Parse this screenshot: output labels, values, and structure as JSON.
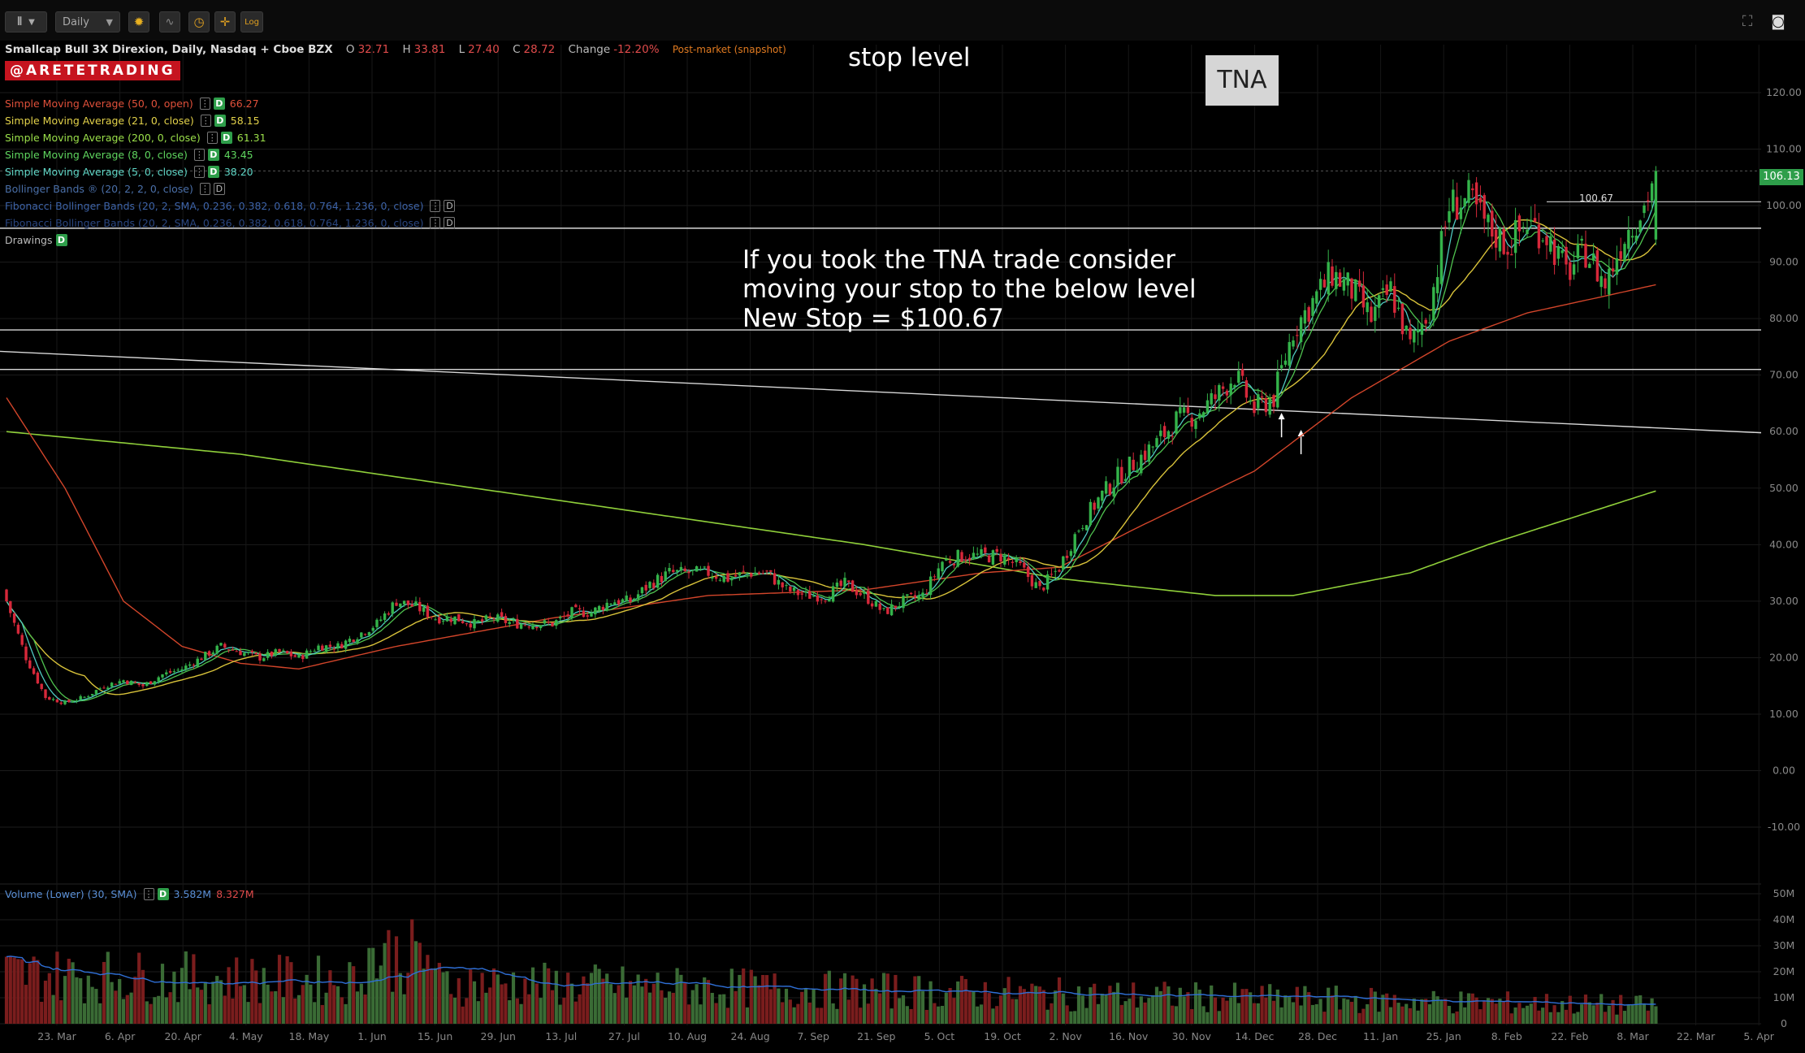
{
  "toolbar": {
    "chart_type_icon": "candlestick-icon",
    "interval": "Daily",
    "buttons": [
      "gear-icon",
      "indicator-icon",
      "clock-icon",
      "crosshair-icon"
    ],
    "log_label": "Log"
  },
  "header": {
    "symbol_name": "Smallcap Bull 3X Direxion, Daily, Nasdaq + Cboe BZX",
    "open_label": "O",
    "open": "32.71",
    "high_label": "H",
    "high": "33.81",
    "low_label": "L",
    "low": "27.40",
    "close_label": "C",
    "close": "28.72",
    "change_label": "Change",
    "change": "-12.20%",
    "session": "Post-market (snapshot)"
  },
  "brand": "@ARETETRADING",
  "indicators": [
    {
      "label": "Simple Moving Average (50, 0, open)",
      "value": "66.27",
      "color": "#e0503a"
    },
    {
      "label": "Simple Moving Average (21, 0, close)",
      "value": "58.15",
      "color": "#e3d24a"
    },
    {
      "label": "Simple Moving Average (200, 0, close)",
      "value": "61.31",
      "color": "#9be04a"
    },
    {
      "label": "Simple Moving Average (8, 0, close)",
      "value": "43.45",
      "color": "#5fd65f"
    },
    {
      "label": "Simple Moving Average (5, 0, close)",
      "value": "38.20",
      "color": "#5fd6c6"
    },
    {
      "label": "Bollinger Bands ® (20, 2, 2, 0, close)",
      "value": "",
      "color": "#4a6fa8"
    },
    {
      "label": "Fibonacci Bollinger Bands (20, 2, SMA, 0.236, 0.382, 0.618, 0.764, 1.236, 0, close)",
      "value": "",
      "color": "#3d63a8"
    },
    {
      "label": "Fibonacci Bollinger Bands (20, 2, SMA, 0.236, 0.382, 0.618, 0.764, 1.236, 0, close)",
      "value": "",
      "color": "#2a4680"
    },
    {
      "label": "Drawings",
      "value": "",
      "color": "#bbbbbb"
    }
  ],
  "annotations": {
    "stop_level": "stop level",
    "tna": "TNA",
    "note_lines": [
      "If you took the TNA trade consider",
      "moving your stop to the below level",
      "New Stop = $100.67"
    ],
    "stop_price": "100.67"
  },
  "last_price": "106.13",
  "volume_legend": {
    "label": "Volume (Lower) (30, SMA)",
    "value1": "3.582M",
    "value2": "8.327M"
  },
  "chart_data": {
    "type": "candlestick",
    "ylim": [
      -20,
      130
    ],
    "price_ticks": [
      "120.00",
      "110.00",
      "100.00",
      "90.00",
      "80.00",
      "70.00",
      "60.00",
      "50.00",
      "40.00",
      "30.00",
      "20.00",
      "10.00",
      "0.00",
      "-10.00"
    ],
    "volume_ticks": [
      "50M",
      "40M",
      "30M",
      "20M",
      "10M",
      "0"
    ],
    "x_ticks": [
      "23. Mar",
      "6. Apr",
      "20. Apr",
      "4. May",
      "18. May",
      "1. Jun",
      "15. Jun",
      "29. Jun",
      "13. Jul",
      "27. Jul",
      "10. Aug",
      "24. Aug",
      "7. Sep",
      "21. Sep",
      "5. Oct",
      "19. Oct",
      "2. Nov",
      "16. Nov",
      "30. Nov",
      "14. Dec",
      "28. Dec",
      "11. Jan",
      "25. Jan",
      "8. Feb",
      "22. Feb",
      "8. Mar",
      "22. Mar",
      "5. Apr"
    ],
    "close_anchors": [
      [
        0,
        30
      ],
      [
        5,
        20
      ],
      [
        10,
        13
      ],
      [
        15,
        12
      ],
      [
        20,
        13
      ],
      [
        25,
        15
      ],
      [
        30,
        16
      ],
      [
        35,
        15
      ],
      [
        40,
        17
      ],
      [
        45,
        18
      ],
      [
        50,
        20
      ],
      [
        55,
        22
      ],
      [
        60,
        21
      ],
      [
        65,
        20
      ],
      [
        70,
        21
      ],
      [
        75,
        20
      ],
      [
        80,
        22
      ],
      [
        85,
        22
      ],
      [
        90,
        24
      ],
      [
        95,
        26
      ],
      [
        100,
        30
      ],
      [
        105,
        29
      ],
      [
        110,
        27
      ],
      [
        115,
        27
      ],
      [
        120,
        26
      ],
      [
        125,
        27
      ],
      [
        130,
        26
      ],
      [
        135,
        26
      ],
      [
        140,
        26
      ],
      [
        145,
        28
      ],
      [
        150,
        28
      ],
      [
        155,
        30
      ],
      [
        160,
        30
      ],
      [
        165,
        33
      ],
      [
        170,
        35
      ],
      [
        175,
        35
      ],
      [
        180,
        35
      ],
      [
        185,
        34
      ],
      [
        190,
        35
      ],
      [
        195,
        35
      ],
      [
        200,
        32
      ],
      [
        205,
        31
      ],
      [
        210,
        31
      ],
      [
        215,
        33
      ],
      [
        220,
        31
      ],
      [
        225,
        28
      ],
      [
        230,
        30
      ],
      [
        235,
        31
      ],
      [
        240,
        37
      ],
      [
        245,
        38
      ],
      [
        250,
        38
      ],
      [
        255,
        38
      ],
      [
        260,
        36
      ],
      [
        265,
        32
      ],
      [
        270,
        36
      ],
      [
        275,
        43
      ],
      [
        280,
        48
      ],
      [
        285,
        52
      ],
      [
        290,
        55
      ],
      [
        295,
        58
      ],
      [
        300,
        62
      ],
      [
        305,
        63
      ],
      [
        310,
        66
      ],
      [
        315,
        70
      ],
      [
        320,
        64
      ],
      [
        325,
        66
      ],
      [
        330,
        78
      ],
      [
        335,
        83
      ],
      [
        340,
        88
      ],
      [
        345,
        85
      ],
      [
        350,
        80
      ],
      [
        355,
        85
      ],
      [
        360,
        75
      ],
      [
        365,
        82
      ],
      [
        370,
        100
      ],
      [
        375,
        101
      ],
      [
        380,
        96
      ],
      [
        385,
        93
      ],
      [
        390,
        97
      ],
      [
        395,
        95
      ],
      [
        400,
        88
      ],
      [
        405,
        92
      ],
      [
        410,
        86
      ],
      [
        415,
        95
      ],
      [
        420,
        100
      ],
      [
        423,
        106.13
      ]
    ],
    "sma200_anchors": [
      [
        0,
        60
      ],
      [
        60,
        56
      ],
      [
        140,
        48
      ],
      [
        220,
        40
      ],
      [
        270,
        34
      ],
      [
        310,
        31
      ],
      [
        330,
        31
      ],
      [
        360,
        35
      ],
      [
        380,
        40
      ],
      [
        423,
        49.5
      ]
    ],
    "sma50_anchors": [
      [
        0,
        66
      ],
      [
        15,
        50
      ],
      [
        30,
        30
      ],
      [
        45,
        22
      ],
      [
        60,
        19
      ],
      [
        75,
        18
      ],
      [
        100,
        22
      ],
      [
        140,
        27
      ],
      [
        180,
        31
      ],
      [
        220,
        32
      ],
      [
        250,
        35
      ],
      [
        270,
        36
      ],
      [
        290,
        43
      ],
      [
        320,
        53
      ],
      [
        345,
        66
      ],
      [
        370,
        76
      ],
      [
        390,
        81
      ],
      [
        410,
        84
      ],
      [
        423,
        86
      ]
    ],
    "trendlines": [
      {
        "from": [
          0,
          74.2
        ],
        "to": [
          460,
          59.8
        ]
      },
      {
        "from": [
          0,
          78.0
        ],
        "to": [
          460,
          78.0
        ]
      },
      {
        "from": [
          0,
          71.0
        ],
        "to": [
          460,
          71.0
        ]
      },
      {
        "from": [
          0,
          96.0
        ],
        "to": [
          460,
          96.0
        ]
      }
    ],
    "stop_price": 100.67,
    "last_price": 106.13
  }
}
